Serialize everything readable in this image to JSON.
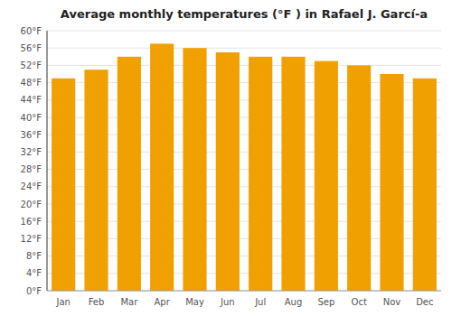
{
  "chart_data": {
    "type": "bar",
    "title": "Average monthly temperatures (°F ) in Rafael J. Garcí-a",
    "categories": [
      "Jan",
      "Feb",
      "Mar",
      "Apr",
      "May",
      "Jun",
      "Jul",
      "Aug",
      "Sep",
      "Oct",
      "Nov",
      "Dec"
    ],
    "values": [
      49,
      51,
      54,
      57,
      56,
      55,
      54,
      54,
      53,
      52,
      50,
      49
    ],
    "color": "#F0A000",
    "ylim": [
      0,
      60
    ],
    "yticks": [
      {
        "value": 0,
        "label": "0°F"
      },
      {
        "value": 4,
        "label": "4°F"
      },
      {
        "value": 8,
        "label": "8°F"
      },
      {
        "value": 12,
        "label": "12°F"
      },
      {
        "value": 16,
        "label": "16°F"
      },
      {
        "value": 20,
        "label": "20°F"
      },
      {
        "value": 24,
        "label": "24°F"
      },
      {
        "value": 28,
        "label": "28°F"
      },
      {
        "value": 32,
        "label": "32°F"
      },
      {
        "value": 36,
        "label": "36°F"
      },
      {
        "value": 40,
        "label": "40°F"
      },
      {
        "value": 44,
        "label": "44°F"
      },
      {
        "value": 48,
        "label": "48°F"
      },
      {
        "value": 52,
        "label": "52°F"
      },
      {
        "value": 56,
        "label": "56°F"
      },
      {
        "value": 60,
        "label": "60°F"
      }
    ],
    "grid": true
  }
}
